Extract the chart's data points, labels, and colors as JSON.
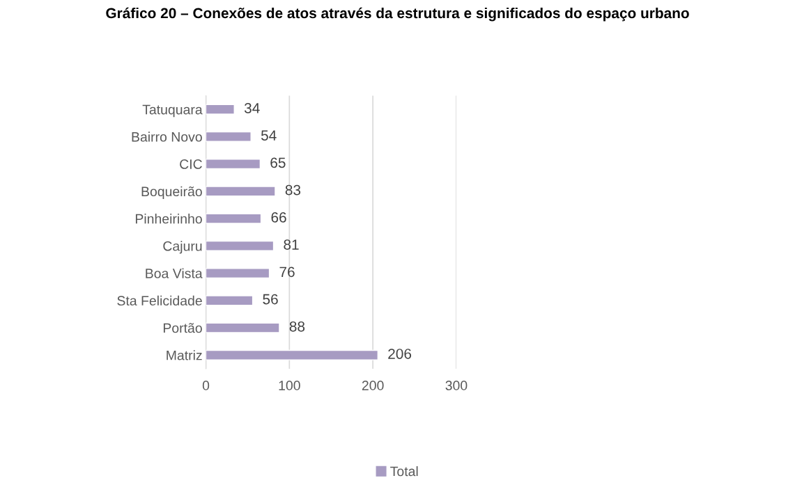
{
  "chart_data": {
    "type": "bar",
    "orientation": "horizontal",
    "title": "Gráfico 20 – Conexões de atos através da estrutura e significados do espaço urbano",
    "categories": [
      "Tatuquara",
      "Bairro Novo",
      "CIC",
      "Boqueirão",
      "Pinheirinho",
      "Cajuru",
      "Boa Vista",
      "Sta Felicidade",
      "Portão",
      "Matriz"
    ],
    "series": [
      {
        "name": "Total",
        "color": "#a79bc2",
        "values": [
          34,
          54,
          65,
          83,
          66,
          81,
          76,
          56,
          88,
          206
        ]
      }
    ],
    "xlim": [
      0,
      300
    ],
    "xticks": [
      0,
      100,
      200,
      300
    ],
    "grid": "x",
    "legend": "bottom",
    "data_labels": true
  }
}
